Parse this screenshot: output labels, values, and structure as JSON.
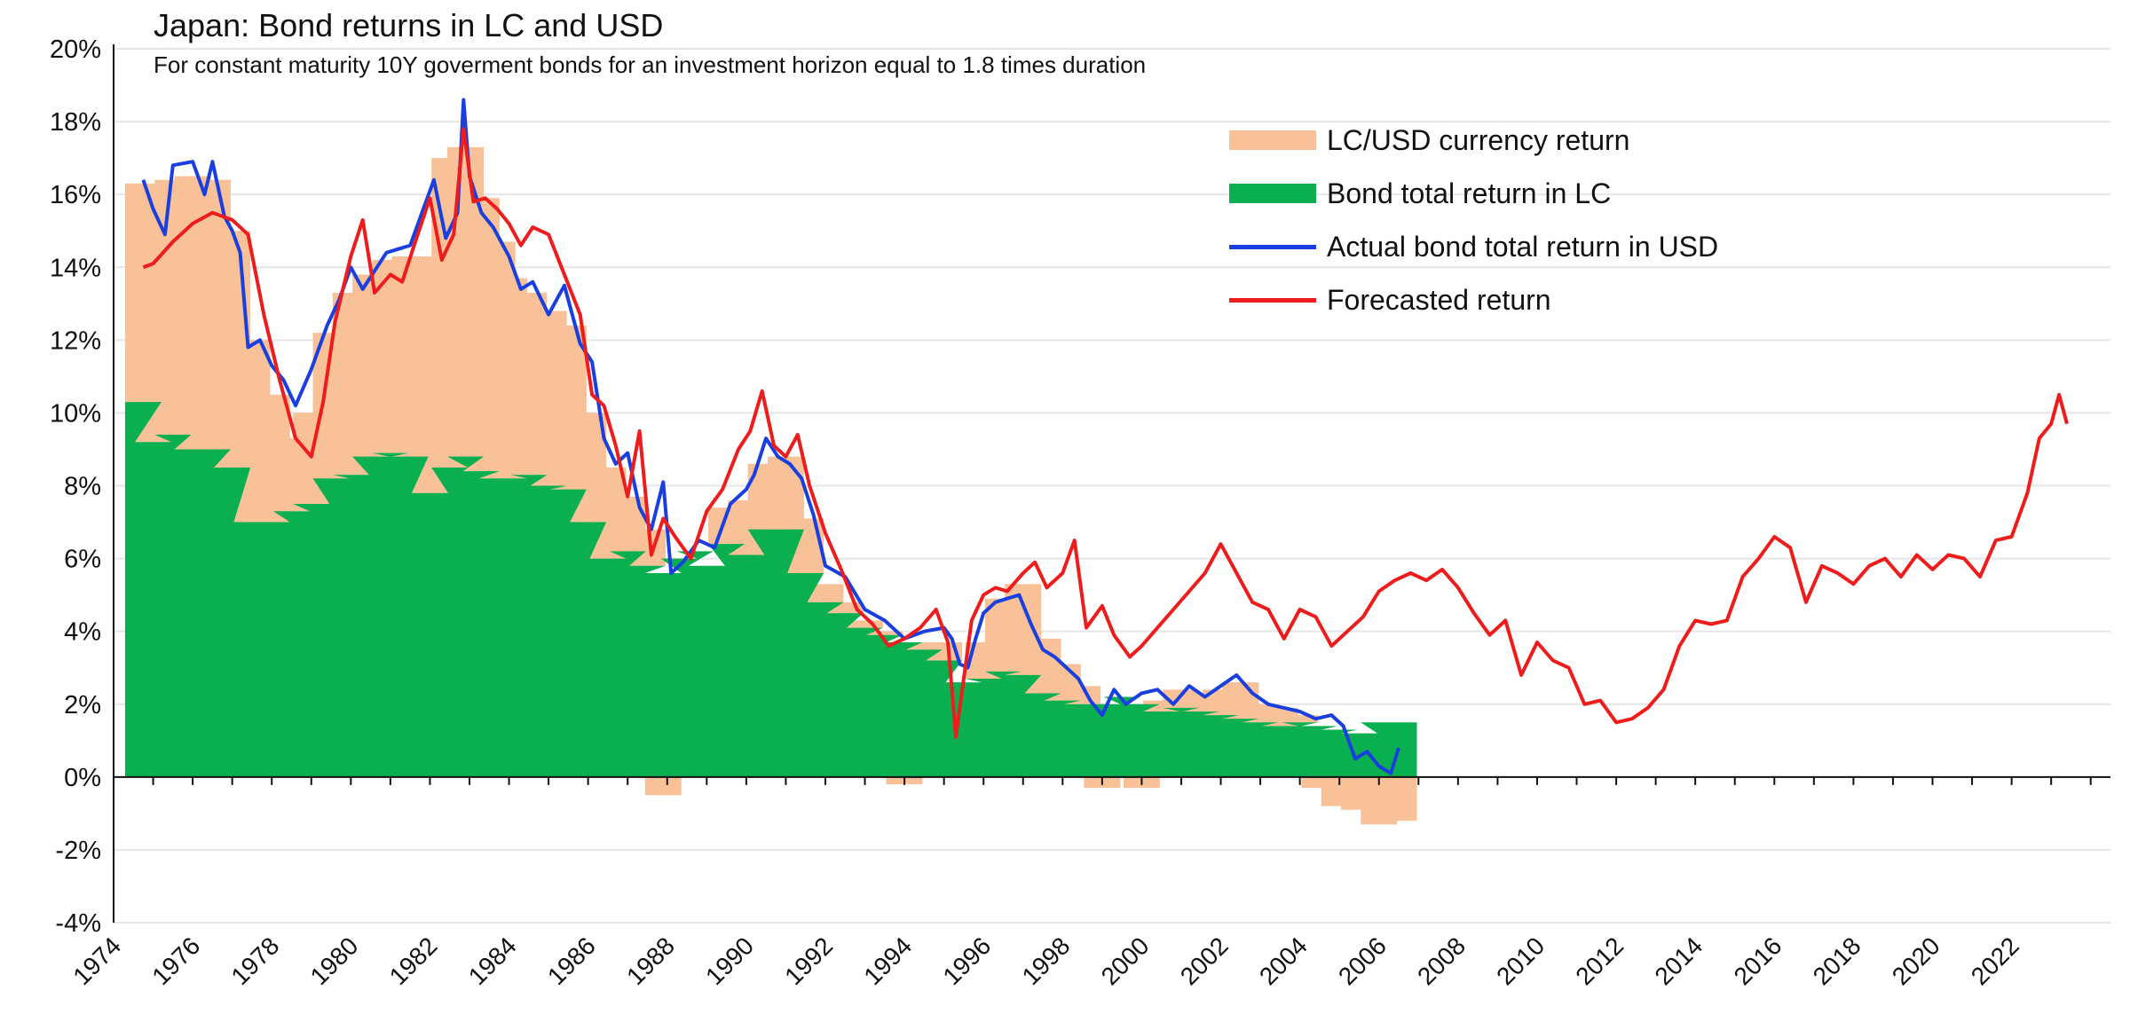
{
  "chart_data": {
    "type": "area",
    "title": "Japan: Bond returns in LC and USD",
    "subtitle": "For constant maturity 10Y goverment bonds for an investment horizon equal to 1.8 times duration",
    "xlabel": "",
    "ylabel": "",
    "xlim": [
      1974,
      2024.5
    ],
    "ylim": [
      -4,
      20
    ],
    "y_ticks": [
      "20%",
      "18%",
      "16%",
      "14%",
      "12%",
      "10%",
      "8%",
      "6%",
      "4%",
      "2%",
      "0%",
      "-2%",
      "-4%"
    ],
    "x_ticks": [
      "1974",
      "1976",
      "1978",
      "1980",
      "1982",
      "1984",
      "1986",
      "1988",
      "1990",
      "1992",
      "1994",
      "1996",
      "1998",
      "2000",
      "2002",
      "2004",
      "2006",
      "2008",
      "2010",
      "2012",
      "2014",
      "2016",
      "2018",
      "2020",
      "2022"
    ],
    "grid": "horizontal",
    "legend_position": "top-right",
    "series": [
      {
        "name": "LC/USD currency return",
        "kind": "stacked-area",
        "color": "#f8c197",
        "x": [
          1974.75,
          1975.0,
          1975.5,
          1976.0,
          1976.5,
          1977.0,
          1977.5,
          1978.0,
          1978.5,
          1979.0,
          1979.5,
          1980.0,
          1980.5,
          1981.0,
          1981.5,
          1982.0,
          1982.5,
          1982.9,
          1983.3,
          1983.7,
          1984.0,
          1984.5,
          1985.0,
          1985.5,
          1986.0,
          1986.5,
          1987.0,
          1987.5,
          1987.9,
          1988.3,
          1988.7,
          1989.0,
          1989.5,
          1990.0,
          1990.5,
          1991.0,
          1991.5,
          1992.0,
          1992.5,
          1993.0,
          1993.5,
          1994.0,
          1994.5,
          1995.0,
          1995.5,
          1996.0,
          1996.5,
          1997.0,
          1997.5,
          1998.0,
          1998.5,
          1999.0,
          1999.5,
          2000.0,
          2000.5,
          2001.0,
          2001.5,
          2002.0,
          2002.5,
          2003.0,
          2003.5,
          2004.0,
          2004.5,
          2005.0,
          2005.5,
          2006.0,
          2006.5
        ],
        "values": [
          6.0,
          6.5,
          7.0,
          7.5,
          7.4,
          6.5,
          5.0,
          3.5,
          2.0,
          2.5,
          4.0,
          5.0,
          5.0,
          5.3,
          5.5,
          6.5,
          8.5,
          8.5,
          7.5,
          6.5,
          5.5,
          5.0,
          4.8,
          4.5,
          3.0,
          2.5,
          1.5,
          1.0,
          -0.5,
          0.0,
          0.0,
          0.0,
          1.0,
          1.5,
          1.8,
          2.0,
          1.5,
          0.5,
          0.3,
          0.2,
          0.1,
          -0.2,
          0.2,
          0.5,
          0.0,
          1.0,
          2.0,
          2.5,
          1.5,
          1.0,
          0.5,
          -0.3,
          0.0,
          -0.3,
          0.3,
          0.5,
          0.5,
          0.7,
          1.0,
          0.5,
          0.5,
          0.2,
          -0.3,
          -0.8,
          -0.9,
          -1.3,
          -1.2
        ]
      },
      {
        "name": "Bond total return in LC",
        "kind": "area",
        "color": "#0aaf50",
        "x": [
          1974.75,
          1975.0,
          1975.5,
          1976.0,
          1976.5,
          1977.0,
          1977.5,
          1978.0,
          1978.5,
          1979.0,
          1979.5,
          1980.0,
          1980.5,
          1981.0,
          1981.5,
          1982.0,
          1982.5,
          1982.9,
          1983.3,
          1983.7,
          1984.0,
          1984.5,
          1985.0,
          1985.5,
          1986.0,
          1986.5,
          1987.0,
          1987.5,
          1987.9,
          1988.3,
          1988.7,
          1989.0,
          1989.5,
          1990.0,
          1990.5,
          1991.0,
          1991.5,
          1992.0,
          1992.5,
          1993.0,
          1993.5,
          1994.0,
          1994.5,
          1995.0,
          1995.5,
          1996.0,
          1996.5,
          1997.0,
          1997.5,
          1998.0,
          1998.5,
          1999.0,
          1999.5,
          2000.0,
          2000.5,
          2001.0,
          2001.5,
          2002.0,
          2002.5,
          2003.0,
          2003.5,
          2004.0,
          2004.5,
          2005.0,
          2005.5,
          2006.0,
          2006.5
        ],
        "values": [
          10.3,
          9.2,
          9.4,
          9.0,
          9.0,
          8.5,
          7.0,
          7.0,
          7.3,
          7.5,
          8.2,
          8.3,
          8.8,
          8.9,
          8.8,
          7.8,
          8.5,
          8.8,
          8.4,
          8.2,
          8.2,
          8.3,
          8.0,
          7.9,
          7.0,
          6.0,
          6.2,
          5.8,
          5.6,
          6.0,
          6.2,
          5.8,
          6.4,
          6.1,
          6.8,
          6.8,
          5.6,
          4.8,
          4.5,
          4.1,
          3.9,
          3.7,
          3.5,
          3.2,
          2.6,
          2.7,
          2.9,
          2.8,
          2.3,
          2.1,
          2.0,
          2.0,
          2.2,
          2.0,
          1.8,
          1.9,
          1.8,
          1.7,
          1.6,
          1.5,
          1.4,
          1.5,
          1.4,
          1.3,
          1.2,
          1.5,
          1.5
        ]
      },
      {
        "name": "Actual bond total return in USD",
        "kind": "line",
        "color": "#1a3fe0",
        "x": [
          1974.75,
          1975.0,
          1975.3,
          1975.5,
          1976.0,
          1976.3,
          1976.5,
          1976.8,
          1977.0,
          1977.2,
          1977.4,
          1977.7,
          1978.0,
          1978.3,
          1978.6,
          1979.0,
          1979.4,
          1979.7,
          1980.0,
          1980.3,
          1980.6,
          1980.9,
          1981.2,
          1981.5,
          1981.8,
          1982.1,
          1982.4,
          1982.7,
          1982.85,
          1983.0,
          1983.3,
          1983.6,
          1984.0,
          1984.3,
          1984.6,
          1985.0,
          1985.4,
          1985.8,
          1986.1,
          1986.4,
          1986.7,
          1987.0,
          1987.3,
          1987.6,
          1987.9,
          1988.1,
          1988.4,
          1988.8,
          1989.2,
          1989.6,
          1990.0,
          1990.2,
          1990.5,
          1990.8,
          1991.1,
          1991.4,
          1991.7,
          1992.0,
          1992.5,
          1993.0,
          1993.5,
          1994.0,
          1994.5,
          1995.0,
          1995.2,
          1995.4,
          1995.6,
          1995.8,
          1996.0,
          1996.3,
          1996.6,
          1996.9,
          1997.2,
          1997.5,
          1997.8,
          1998.1,
          1998.4,
          1998.7,
          1999.0,
          1999.3,
          1999.6,
          2000.0,
          2000.4,
          2000.8,
          2001.2,
          2001.6,
          2002.0,
          2002.4,
          2002.8,
          2003.2,
          2003.6,
          2004.0,
          2004.4,
          2004.8,
          2005.1,
          2005.4,
          2005.7,
          2006.0,
          2006.3,
          2006.5
        ],
        "values": [
          16.4,
          15.6,
          14.9,
          16.8,
          16.9,
          16.0,
          16.9,
          15.4,
          15.0,
          14.4,
          11.8,
          12.0,
          11.3,
          10.9,
          10.2,
          11.2,
          12.4,
          13.1,
          14.0,
          13.4,
          13.9,
          14.4,
          14.5,
          14.6,
          15.5,
          16.4,
          14.8,
          15.5,
          18.6,
          16.5,
          15.5,
          15.1,
          14.3,
          13.4,
          13.6,
          12.7,
          13.5,
          11.9,
          11.4,
          9.3,
          8.6,
          8.9,
          7.4,
          6.8,
          8.1,
          5.6,
          5.9,
          6.5,
          6.3,
          7.5,
          7.9,
          8.3,
          9.3,
          8.8,
          8.6,
          8.2,
          7.2,
          5.8,
          5.5,
          4.6,
          4.3,
          3.8,
          4.0,
          4.1,
          3.8,
          3.1,
          3.0,
          3.8,
          4.5,
          4.8,
          4.9,
          5.0,
          4.2,
          3.5,
          3.3,
          3.0,
          2.7,
          2.1,
          1.7,
          2.4,
          2.0,
          2.3,
          2.4,
          2.0,
          2.5,
          2.2,
          2.5,
          2.8,
          2.3,
          2.0,
          1.9,
          1.8,
          1.6,
          1.7,
          1.4,
          0.5,
          0.7,
          0.3,
          0.1,
          0.8
        ]
      },
      {
        "name": "Forecasted return",
        "kind": "line",
        "color": "#ee1c1c",
        "x": [
          1974.75,
          1975.0,
          1975.5,
          1976.0,
          1976.5,
          1977.0,
          1977.4,
          1977.8,
          1978.2,
          1978.6,
          1979.0,
          1979.3,
          1979.6,
          1980.0,
          1980.3,
          1980.6,
          1981.0,
          1981.3,
          1981.6,
          1982.0,
          1982.3,
          1982.6,
          1982.85,
          1983.1,
          1983.4,
          1983.7,
          1984.0,
          1984.3,
          1984.6,
          1985.0,
          1985.4,
          1985.8,
          1986.1,
          1986.4,
          1986.7,
          1987.0,
          1987.3,
          1987.6,
          1987.9,
          1988.2,
          1988.6,
          1989.0,
          1989.4,
          1989.8,
          1990.1,
          1990.4,
          1990.7,
          1991.0,
          1991.3,
          1991.6,
          1992.0,
          1992.4,
          1992.8,
          1993.2,
          1993.6,
          1994.0,
          1994.4,
          1994.8,
          1995.1,
          1995.3,
          1995.5,
          1995.7,
          1996.0,
          1996.3,
          1996.6,
          1997.0,
          1997.3,
          1997.6,
          1998.0,
          1998.3,
          1998.6,
          1999.0,
          1999.3,
          1999.7,
          2000.0,
          2000.4,
          2000.8,
          2001.2,
          2001.6,
          2002.0,
          2002.4,
          2002.8,
          2003.2,
          2003.6,
          2004.0,
          2004.4,
          2004.8,
          2005.2,
          2005.6,
          2006.0,
          2006.4,
          2006.8,
          2007.2,
          2007.6,
          2008.0,
          2008.4,
          2008.8,
          2009.2,
          2009.6,
          2010.0,
          2010.4,
          2010.8,
          2011.2,
          2011.6,
          2012.0,
          2012.4,
          2012.8,
          2013.2,
          2013.6,
          2014.0,
          2014.4,
          2014.8,
          2015.2,
          2015.6,
          2016.0,
          2016.4,
          2016.8,
          2017.2,
          2017.6,
          2018.0,
          2018.4,
          2018.8,
          2019.2,
          2019.6,
          2020.0,
          2020.4,
          2020.8,
          2021.2,
          2021.6,
          2022.0,
          2022.4,
          2022.7,
          2023.0,
          2023.2,
          2023.4
        ],
        "values": [
          14.0,
          14.1,
          14.7,
          15.2,
          15.5,
          15.3,
          14.9,
          12.7,
          10.9,
          9.3,
          8.8,
          10.3,
          12.5,
          14.3,
          15.3,
          13.3,
          13.8,
          13.6,
          14.6,
          15.9,
          14.2,
          14.9,
          17.8,
          15.8,
          15.9,
          15.6,
          15.2,
          14.6,
          15.1,
          14.9,
          13.8,
          12.7,
          10.5,
          10.2,
          9.1,
          7.7,
          9.5,
          6.1,
          7.1,
          6.6,
          6.0,
          7.3,
          7.9,
          9.0,
          9.5,
          10.6,
          9.1,
          8.8,
          9.4,
          8.0,
          6.7,
          5.7,
          4.6,
          4.2,
          3.6,
          3.8,
          4.1,
          4.6,
          3.7,
          1.1,
          2.7,
          4.3,
          5.0,
          5.2,
          5.1,
          5.6,
          5.9,
          5.2,
          5.6,
          6.5,
          4.1,
          4.7,
          3.9,
          3.3,
          3.6,
          4.1,
          4.6,
          5.1,
          5.6,
          6.4,
          5.6,
          4.8,
          4.6,
          3.8,
          4.6,
          4.4,
          3.6,
          4.0,
          4.4,
          5.1,
          5.4,
          5.6,
          5.4,
          5.7,
          5.2,
          4.5,
          3.9,
          4.3,
          2.8,
          3.7,
          3.2,
          3.0,
          2.0,
          2.1,
          1.5,
          1.6,
          1.9,
          2.4,
          3.6,
          4.3,
          4.2,
          4.3,
          5.5,
          6.0,
          6.6,
          6.3,
          4.8,
          5.8,
          5.6,
          5.3,
          5.8,
          6.0,
          5.5,
          6.1,
          5.7,
          6.1,
          6.0,
          5.5,
          6.5,
          6.6,
          7.8,
          9.3,
          9.7,
          10.5,
          9.7
        ]
      }
    ]
  }
}
